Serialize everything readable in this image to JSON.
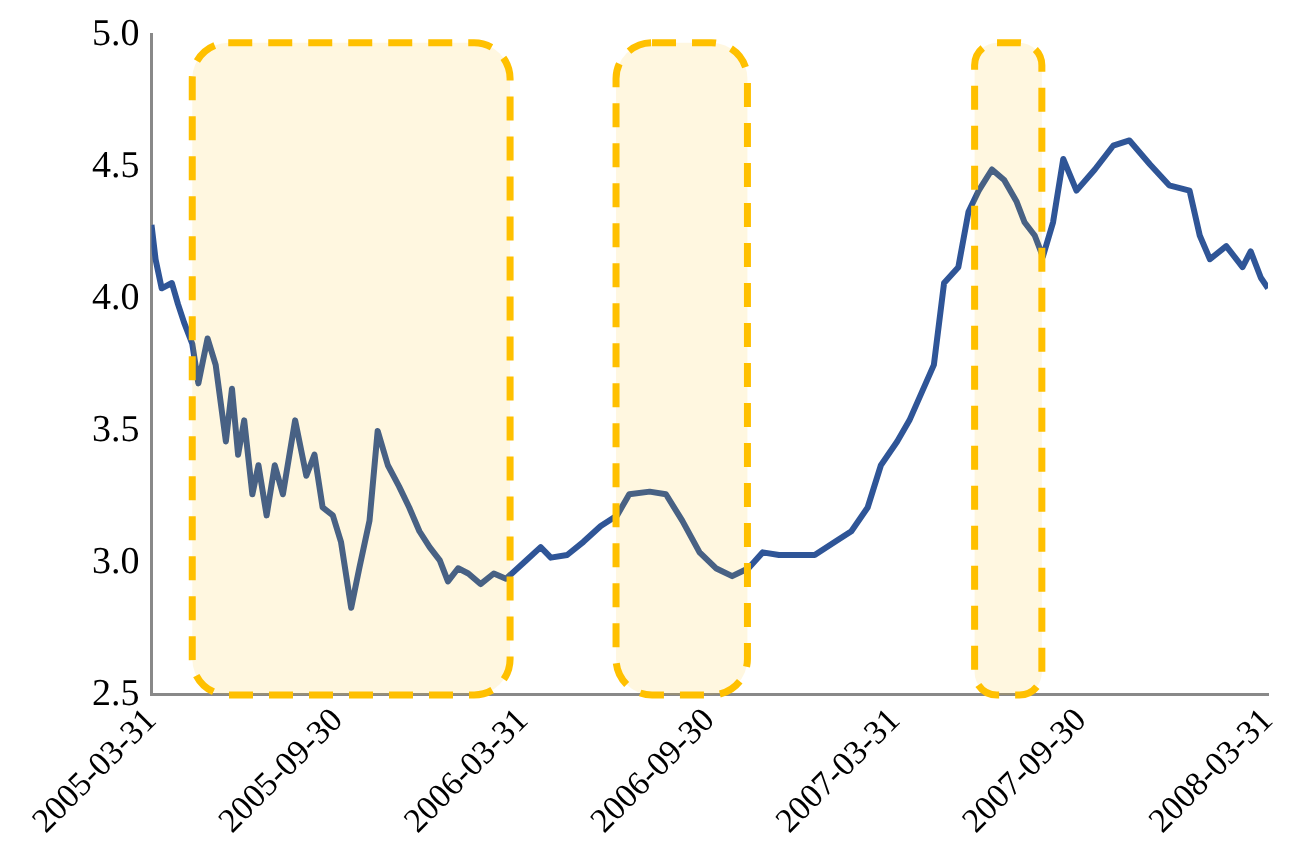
{
  "chart_data": {
    "type": "line",
    "x": [
      "2005-03-31",
      "2005-04-04",
      "2005-04-10",
      "2005-04-20",
      "2005-04-26",
      "2005-05-02",
      "2005-05-10",
      "2005-05-16",
      "2005-05-25",
      "2005-06-02",
      "2005-06-12",
      "2005-06-18",
      "2005-06-24",
      "2005-06-30",
      "2005-07-08",
      "2005-07-14",
      "2005-07-22",
      "2005-07-30",
      "2005-08-07",
      "2005-08-19",
      "2005-08-30",
      "2005-09-07",
      "2005-09-15",
      "2005-09-25",
      "2005-10-03",
      "2005-10-13",
      "2005-10-21",
      "2005-10-31",
      "2005-11-08",
      "2005-11-18",
      "2005-11-29",
      "2005-12-09",
      "2005-12-19",
      "2005-12-29",
      "2006-01-08",
      "2006-01-16",
      "2006-01-26",
      "2006-02-05",
      "2006-02-17",
      "2006-03-02",
      "2006-03-14",
      "2006-04-03",
      "2006-04-17",
      "2006-04-27",
      "2006-05-13",
      "2006-05-29",
      "2006-06-15",
      "2006-07-01",
      "2006-07-13",
      "2006-08-02",
      "2006-08-18",
      "2006-09-03",
      "2006-09-20",
      "2006-10-06",
      "2006-10-22",
      "2006-11-07",
      "2006-11-21",
      "2006-12-07",
      "2006-12-26",
      "2007-01-11",
      "2007-01-31",
      "2007-02-16",
      "2007-03-04",
      "2007-03-17",
      "2007-04-02",
      "2007-04-14",
      "2007-04-22",
      "2007-05-08",
      "2007-05-18",
      "2007-06-01",
      "2007-06-11",
      "2007-06-21",
      "2007-07-04",
      "2007-07-16",
      "2007-07-28",
      "2007-08-05",
      "2007-08-15",
      "2007-08-23",
      "2007-09-02",
      "2007-09-12",
      "2007-09-25",
      "2007-10-13",
      "2007-10-31",
      "2007-11-16",
      "2007-12-06",
      "2007-12-25",
      "2008-01-14",
      "2008-01-24",
      "2008-02-03",
      "2008-02-19",
      "2008-03-06",
      "2008-03-14",
      "2008-03-24",
      "2008-03-31"
    ],
    "series": [
      {
        "color": "#2f5597",
        "values": [
          4.28,
          4.15,
          4.04,
          4.06,
          3.98,
          3.91,
          3.83,
          3.68,
          3.85,
          3.75,
          3.46,
          3.66,
          3.41,
          3.54,
          3.26,
          3.37,
          3.18,
          3.37,
          3.26,
          3.54,
          3.33,
          3.41,
          3.21,
          3.18,
          3.08,
          2.83,
          2.98,
          3.16,
          3.5,
          3.37,
          3.29,
          3.21,
          3.12,
          3.06,
          3.01,
          2.93,
          2.98,
          2.96,
          2.92,
          2.96,
          2.94,
          3.01,
          3.06,
          3.02,
          3.03,
          3.08,
          3.14,
          3.18,
          3.26,
          3.27,
          3.26,
          3.16,
          3.04,
          2.98,
          2.95,
          2.98,
          3.04,
          3.03,
          3.03,
          3.03,
          3.08,
          3.12,
          3.21,
          3.37,
          3.46,
          3.54,
          3.61,
          3.75,
          4.06,
          4.12,
          4.33,
          4.41,
          4.49,
          4.45,
          4.37,
          4.29,
          4.24,
          4.16,
          4.29,
          4.53,
          4.41,
          4.49,
          4.58,
          4.6,
          4.51,
          4.43,
          4.41,
          4.24,
          4.15,
          4.2,
          4.12,
          4.18,
          4.08,
          4.04
        ]
      }
    ],
    "xlim": [
      "2005-03-31",
      "2008-03-31"
    ],
    "xticks": [
      "2005-03-31",
      "2005-09-30",
      "2006-03-31",
      "2006-09-30",
      "2007-03-31",
      "2007-09-30",
      "2008-03-31"
    ],
    "ylim": [
      2.5,
      5.0
    ],
    "yticks": [
      {
        "value": 2.5,
        "label": "2.5"
      },
      {
        "value": 3,
        "label": "3.0"
      },
      {
        "value": 3.5,
        "label": "3.5"
      },
      {
        "value": 4,
        "label": "4.0"
      },
      {
        "value": 4.5,
        "label": "4.5"
      },
      {
        "value": 5,
        "label": "5.0"
      }
    ],
    "bands": [
      {
        "axis": "x",
        "from": "2005-05-10",
        "to": "2006-03-18",
        "color": "#ffc000"
      },
      {
        "axis": "x",
        "from": "2006-06-30",
        "to": "2006-11-06",
        "color": "#ffc000"
      },
      {
        "axis": "x",
        "from": "2007-06-17",
        "to": "2007-08-22",
        "color": "#ffc000"
      }
    ],
    "grid": false,
    "legend": false,
    "marker": "none",
    "line_style": "solid"
  }
}
